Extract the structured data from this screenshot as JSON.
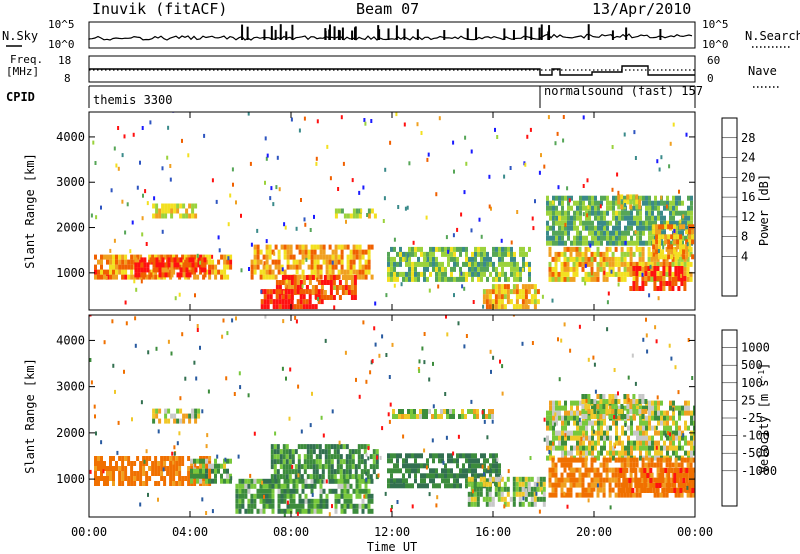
{
  "header": {
    "station": "Inuvik (fitACF)",
    "beam": "Beam 07",
    "date": "13/Apr/2010"
  },
  "noise_panel": {
    "left_label": "N.Sky",
    "right_label": "N.Search",
    "ticks": [
      "10^5",
      "10^0"
    ],
    "right_ticks": [
      "10^5",
      "10^0"
    ]
  },
  "freq_panel": {
    "left_label_line1": "Freq.",
    "left_label_line2": "[MHz]",
    "left_ticks": [
      "18",
      "8"
    ],
    "right_label": "Nave",
    "right_ticks": [
      "60",
      "0"
    ]
  },
  "cpid_panel": {
    "label": "CPID",
    "segments": [
      {
        "text": "themis 3300",
        "start_hour": 0
      },
      {
        "text": "normalsound (fast) 157",
        "start_hour": 18
      }
    ]
  },
  "time_axis": {
    "label": "Time UT",
    "ticks": [
      "00:00",
      "04:00",
      "08:00",
      "12:00",
      "16:00",
      "20:00",
      "00:00"
    ]
  },
  "power_colorbar": {
    "label": "Power [dB]",
    "ticks": [
      "28",
      "24",
      "20",
      "16",
      "12",
      "8",
      "4"
    ]
  },
  "velocity_colorbar": {
    "label": "Velocity  [m s",
    "label_sup": "-1",
    "label_end": "]",
    "ticks": [
      "1000",
      "500",
      "100",
      "25",
      "-25",
      "-100",
      "-500",
      "-1000"
    ]
  },
  "colors": {
    "power_scale": [
      "#1a1aff",
      "#2e55c0",
      "#3a8a8a",
      "#56a657",
      "#9bd23c",
      "#f3e020",
      "#f0a020",
      "#f06000",
      "#ff1010"
    ],
    "velocity_scale": [
      "#1a2eb4",
      "#285aa0",
      "#327050",
      "#3c8c3c",
      "#78c83c",
      "#c8c8c8",
      "#f0c828",
      "#f0a020",
      "#f07000",
      "#ff1010"
    ]
  },
  "chart_data": [
    {
      "type": "heatmap",
      "title": "Power",
      "ylabel": "Slant Range [km]",
      "xlabel": "",
      "xlim": [
        0,
        24
      ],
      "ylim": [
        180,
        4550
      ],
      "yticks": [
        "4000",
        "3000",
        "2000",
        "1000"
      ],
      "yticks_values": [
        4000,
        3000,
        2000,
        1000
      ],
      "colorbar_range": [
        0,
        32
      ],
      "blobs": [
        {
          "t0": 0.2,
          "t1": 5.6,
          "r0": 850,
          "r1": 1400,
          "value": 24
        },
        {
          "t0": 1.8,
          "t1": 4.6,
          "r0": 900,
          "r1": 1250,
          "value": 29
        },
        {
          "t0": 2.5,
          "t1": 4.2,
          "r0": 2200,
          "r1": 2450,
          "value": 18
        },
        {
          "t0": 6.4,
          "t1": 11.2,
          "r0": 850,
          "r1": 1600,
          "value": 23
        },
        {
          "t0": 7.4,
          "t1": 10.5,
          "r0": 400,
          "r1": 900,
          "value": 27
        },
        {
          "t0": 6.8,
          "t1": 9.2,
          "r0": 200,
          "r1": 550,
          "value": 30
        },
        {
          "t0": 9.5,
          "t1": 11.3,
          "r0": 2200,
          "r1": 2400,
          "value": 17
        },
        {
          "t0": 11.8,
          "t1": 17.5,
          "r0": 800,
          "r1": 1500,
          "value": 14
        },
        {
          "t0": 15.6,
          "t1": 17.8,
          "r0": 200,
          "r1": 700,
          "value": 22
        },
        {
          "t0": 18.1,
          "t1": 23.9,
          "r0": 1600,
          "r1": 2600,
          "value": 13
        },
        {
          "t0": 18.2,
          "t1": 23.9,
          "r0": 800,
          "r1": 1500,
          "value": 21
        },
        {
          "t0": 21.4,
          "t1": 23.6,
          "r0": 600,
          "r1": 1100,
          "value": 29
        },
        {
          "t0": 22.3,
          "t1": 23.9,
          "r0": 1300,
          "r1": 2000,
          "value": 23
        },
        {
          "t0": 20.8,
          "t1": 21.8,
          "r0": 2400,
          "r1": 2700,
          "value": 20
        }
      ]
    },
    {
      "type": "heatmap",
      "title": "Velocity",
      "ylabel": "Slant Range [km]",
      "xlabel": "Time UT",
      "xlim": [
        0,
        24
      ],
      "ylim": [
        180,
        4550
      ],
      "yticks": [
        "4000",
        "3000",
        "2000",
        "1000"
      ],
      "yticks_values": [
        4000,
        3000,
        2000,
        1000
      ],
      "colorbar_range": [
        -1000,
        1000
      ],
      "blobs": [
        {
          "t0": 0.2,
          "t1": 4.8,
          "r0": 850,
          "r1": 1450,
          "value": -400
        },
        {
          "t0": 4.0,
          "t1": 5.6,
          "r0": 900,
          "r1": 1400,
          "value": 120
        },
        {
          "t0": 2.5,
          "t1": 4.4,
          "r0": 2200,
          "r1": 2450,
          "value": 0
        },
        {
          "t0": 5.8,
          "t1": 11.2,
          "r0": 250,
          "r1": 900,
          "value": 150
        },
        {
          "t0": 7.2,
          "t1": 11.4,
          "r0": 1000,
          "r1": 1650,
          "value": 200
        },
        {
          "t0": 11.8,
          "t1": 16.2,
          "r0": 800,
          "r1": 1500,
          "value": 250
        },
        {
          "t0": 15.0,
          "t1": 18.0,
          "r0": 400,
          "r1": 1000,
          "value": 60
        },
        {
          "t0": 18.1,
          "t1": 24.0,
          "r0": 1400,
          "r1": 2600,
          "value": 0
        },
        {
          "t0": 18.2,
          "t1": 24.0,
          "r0": 600,
          "r1": 1400,
          "value": -350
        },
        {
          "t0": 21.0,
          "t1": 23.9,
          "r0": 700,
          "r1": 1200,
          "value": -600
        },
        {
          "t0": 19.5,
          "t1": 22.0,
          "r0": 2300,
          "r1": 2800,
          "value": 0
        },
        {
          "t0": 12.0,
          "t1": 16.0,
          "r0": 2300,
          "r1": 2500,
          "value": 0
        }
      ]
    }
  ]
}
